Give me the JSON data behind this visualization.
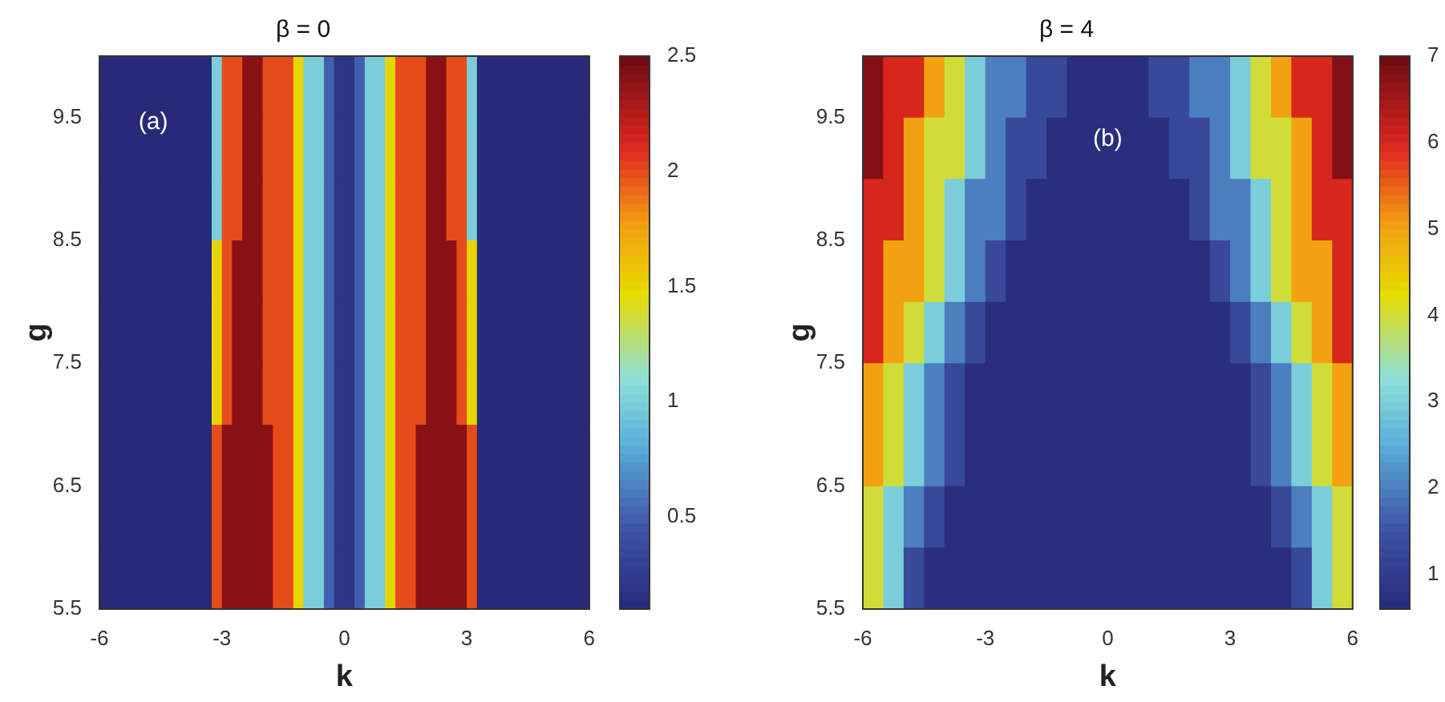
{
  "chart_data": [
    {
      "type": "heatmap",
      "title": "β = 0",
      "xlabel": "k",
      "ylabel": "g",
      "annotations": [
        "(a)"
      ],
      "x": [
        -5.875,
        -5.625,
        -5.375,
        -5.125,
        -4.875,
        -4.625,
        -4.375,
        -4.125,
        -3.875,
        -3.625,
        -3.375,
        -3.125,
        -2.875,
        -2.625,
        -2.375,
        -2.125,
        -1.875,
        -1.625,
        -1.375,
        -1.125,
        -0.875,
        -0.625,
        -0.375,
        -0.125,
        0.125,
        0.375,
        0.625,
        0.875,
        1.125,
        1.375,
        1.625,
        1.875,
        2.125,
        2.375,
        2.625,
        2.875,
        3.125,
        3.375,
        3.625,
        3.875,
        4.125,
        4.375,
        4.625,
        4.875,
        5.125,
        5.375,
        5.625,
        5.875
      ],
      "y": [
        9.75,
        9.25,
        8.75,
        8.25,
        7.75,
        7.25,
        6.75,
        6.25,
        5.75
      ],
      "cells": [
        [
          0.1,
          0.1,
          0.1,
          0.1,
          0.1,
          0.1,
          0.1,
          0.1,
          0.1,
          0.1,
          0.1,
          1,
          2,
          2,
          2.4,
          2.4,
          2,
          2,
          2,
          1.5,
          1,
          1,
          0.5,
          0.2,
          0.2,
          0.5,
          1,
          1,
          1.5,
          2,
          2,
          2,
          2.4,
          2.4,
          2,
          2,
          1,
          0.1,
          0.1,
          0.1,
          0.1,
          0.1,
          0.1,
          0.1,
          0.1,
          0.1,
          0.1,
          0.1
        ],
        [
          0.1,
          0.1,
          0.1,
          0.1,
          0.1,
          0.1,
          0.1,
          0.1,
          0.1,
          0.1,
          0.1,
          1,
          2,
          2,
          2.4,
          2.4,
          2,
          2,
          2,
          1.5,
          1,
          1,
          0.5,
          0.2,
          0.2,
          0.5,
          1,
          1,
          1.5,
          2,
          2,
          2,
          2.4,
          2.4,
          2,
          2,
          1,
          0.1,
          0.1,
          0.1,
          0.1,
          0.1,
          0.1,
          0.1,
          0.1,
          0.1,
          0.1,
          0.1
        ],
        [
          0.1,
          0.1,
          0.1,
          0.1,
          0.1,
          0.1,
          0.1,
          0.1,
          0.1,
          0.1,
          0.1,
          1,
          2,
          2,
          2.4,
          2.4,
          2,
          2,
          2,
          1.5,
          1,
          1,
          0.5,
          0.2,
          0.2,
          0.5,
          1,
          1,
          1.5,
          2,
          2,
          2,
          2.4,
          2.4,
          2,
          2,
          1,
          0.1,
          0.1,
          0.1,
          0.1,
          0.1,
          0.1,
          0.1,
          0.1,
          0.1,
          0.1,
          0.1
        ],
        [
          0.1,
          0.1,
          0.1,
          0.1,
          0.1,
          0.1,
          0.1,
          0.1,
          0.1,
          0.1,
          0.1,
          1.5,
          2,
          2.4,
          2.4,
          2.4,
          2,
          2,
          2,
          1.5,
          1,
          1,
          0.5,
          0.2,
          0.2,
          0.5,
          1,
          1,
          1.5,
          2,
          2,
          2,
          2.4,
          2.4,
          2.4,
          2,
          1.5,
          0.1,
          0.1,
          0.1,
          0.1,
          0.1,
          0.1,
          0.1,
          0.1,
          0.1,
          0.1,
          0.1
        ],
        [
          0.1,
          0.1,
          0.1,
          0.1,
          0.1,
          0.1,
          0.1,
          0.1,
          0.1,
          0.1,
          0.1,
          1.5,
          2,
          2.4,
          2.4,
          2.4,
          2,
          2,
          2,
          1.5,
          1,
          1,
          0.5,
          0.2,
          0.2,
          0.5,
          1,
          1,
          1.5,
          2,
          2,
          2,
          2.4,
          2.4,
          2.4,
          2,
          1.5,
          0.1,
          0.1,
          0.1,
          0.1,
          0.1,
          0.1,
          0.1,
          0.1,
          0.1,
          0.1,
          0.1
        ],
        [
          0.1,
          0.1,
          0.1,
          0.1,
          0.1,
          0.1,
          0.1,
          0.1,
          0.1,
          0.1,
          0.1,
          1.5,
          2,
          2.4,
          2.4,
          2.4,
          2,
          2,
          2,
          1.5,
          1,
          1,
          0.5,
          0.2,
          0.2,
          0.5,
          1,
          1,
          1.5,
          2,
          2,
          2,
          2.4,
          2.4,
          2.4,
          2,
          1.5,
          0.1,
          0.1,
          0.1,
          0.1,
          0.1,
          0.1,
          0.1,
          0.1,
          0.1,
          0.1,
          0.1
        ],
        [
          0.1,
          0.1,
          0.1,
          0.1,
          0.1,
          0.1,
          0.1,
          0.1,
          0.1,
          0.1,
          0.1,
          2,
          2.4,
          2.4,
          2.4,
          2.4,
          2.4,
          2,
          2,
          1.5,
          1,
          1,
          0.5,
          0.2,
          0.2,
          0.5,
          1,
          1,
          1.5,
          2,
          2,
          2.4,
          2.4,
          2.4,
          2.4,
          2.4,
          2,
          0.1,
          0.1,
          0.1,
          0.1,
          0.1,
          0.1,
          0.1,
          0.1,
          0.1,
          0.1,
          0.1
        ],
        [
          0.1,
          0.1,
          0.1,
          0.1,
          0.1,
          0.1,
          0.1,
          0.1,
          0.1,
          0.1,
          0.1,
          2,
          2.4,
          2.4,
          2.4,
          2.4,
          2.4,
          2,
          2,
          1.5,
          1,
          1,
          0.5,
          0.2,
          0.2,
          0.5,
          1,
          1,
          1.5,
          2,
          2,
          2.4,
          2.4,
          2.4,
          2.4,
          2.4,
          2,
          0.1,
          0.1,
          0.1,
          0.1,
          0.1,
          0.1,
          0.1,
          0.1,
          0.1,
          0.1,
          0.1
        ],
        [
          0.1,
          0.1,
          0.1,
          0.1,
          0.1,
          0.1,
          0.1,
          0.1,
          0.1,
          0.1,
          0.1,
          2,
          2.4,
          2.4,
          2.4,
          2.4,
          2.4,
          2,
          2,
          1.5,
          1,
          1,
          0.5,
          0.2,
          0.2,
          0.5,
          1,
          1,
          1.5,
          2,
          2,
          2.4,
          2.4,
          2.4,
          2.4,
          2.4,
          2,
          0.1,
          0.1,
          0.1,
          0.1,
          0.1,
          0.1,
          0.1,
          0.1,
          0.1,
          0.1,
          0.1
        ]
      ],
      "xlim": [
        -6,
        6
      ],
      "ylim": [
        5.5,
        10
      ],
      "xticks": [
        -6,
        -3,
        0,
        3,
        6
      ],
      "yticks": [
        5.5,
        6.5,
        7.5,
        8.5,
        9.5
      ],
      "clim": [
        0.1,
        2.5
      ],
      "cticks": [
        0.5,
        1,
        1.5,
        2,
        2.5
      ]
    },
    {
      "type": "heatmap",
      "title": "β = 4",
      "xlabel": "k",
      "ylabel": "g",
      "annotations": [
        "(b)"
      ],
      "x": [
        -5.75,
        -5.25,
        -4.75,
        -4.25,
        -3.75,
        -3.25,
        -2.75,
        -2.25,
        -1.75,
        -1.25,
        -0.75,
        -0.25,
        0.25,
        0.75,
        1.25,
        1.75,
        2.25,
        2.75,
        3.25,
        3.75,
        4.25,
        4.75,
        5.25,
        5.75
      ],
      "y": [
        9.75,
        9.25,
        8.75,
        8.25,
        7.75,
        7.25,
        6.75,
        6.25,
        5.75
      ],
      "cells": [
        [
          6.8,
          6,
          6,
          5,
          4,
          3,
          2,
          2,
          1.3,
          1.3,
          0.7,
          0.7,
          0.7,
          0.7,
          1.3,
          1.3,
          2,
          2,
          3,
          4,
          5,
          6,
          6,
          6.8
        ],
        [
          6.8,
          6,
          5,
          4,
          4,
          3,
          2,
          1.3,
          1.3,
          0.7,
          0.7,
          0.7,
          0.7,
          0.7,
          0.7,
          1.3,
          1.3,
          2,
          3,
          4,
          4,
          5,
          6,
          6.8
        ],
        [
          6,
          6,
          5,
          4,
          3,
          2,
          2,
          1.3,
          0.7,
          0.7,
          0.7,
          0.7,
          0.7,
          0.7,
          0.7,
          0.7,
          1.3,
          2,
          2,
          3,
          4,
          5,
          6,
          6
        ],
        [
          6,
          5,
          5,
          4,
          3,
          2,
          1.3,
          0.7,
          0.7,
          0.7,
          0.7,
          0.7,
          0.7,
          0.7,
          0.7,
          0.7,
          0.7,
          1.3,
          2,
          3,
          4,
          5,
          5,
          6
        ],
        [
          6,
          5,
          4,
          3,
          2,
          1.3,
          0.7,
          0.7,
          0.7,
          0.7,
          0.7,
          0.7,
          0.7,
          0.7,
          0.7,
          0.7,
          0.7,
          0.7,
          1.3,
          2,
          3,
          4,
          5,
          6
        ],
        [
          5,
          4,
          3,
          2,
          1.3,
          0.7,
          0.7,
          0.7,
          0.7,
          0.7,
          0.7,
          0.7,
          0.7,
          0.7,
          0.7,
          0.7,
          0.7,
          0.7,
          0.7,
          1.3,
          2,
          3,
          4,
          5
        ],
        [
          5,
          4,
          3,
          2,
          1.3,
          0.7,
          0.7,
          0.7,
          0.7,
          0.7,
          0.7,
          0.7,
          0.7,
          0.7,
          0.7,
          0.7,
          0.7,
          0.7,
          0.7,
          1.3,
          2,
          3,
          4,
          5
        ],
        [
          4,
          3,
          2,
          1.3,
          0.7,
          0.7,
          0.7,
          0.7,
          0.7,
          0.7,
          0.7,
          0.7,
          0.7,
          0.7,
          0.7,
          0.7,
          0.7,
          0.7,
          0.7,
          0.7,
          1.3,
          2,
          3,
          4
        ],
        [
          4,
          3,
          1.3,
          0.7,
          0.7,
          0.7,
          0.7,
          0.7,
          0.7,
          0.7,
          0.7,
          0.7,
          0.7,
          0.7,
          0.7,
          0.7,
          0.7,
          0.7,
          0.7,
          0.7,
          0.7,
          1.3,
          3,
          4
        ]
      ],
      "xlim": [
        -6,
        6
      ],
      "ylim": [
        5.5,
        10
      ],
      "xticks": [
        -6,
        -3,
        0,
        3,
        6
      ],
      "yticks": [
        5.5,
        6.5,
        7.5,
        8.5,
        9.5
      ],
      "clim": [
        0.6,
        7
      ],
      "cticks": [
        1,
        2,
        3,
        4,
        5,
        6,
        7
      ]
    }
  ]
}
